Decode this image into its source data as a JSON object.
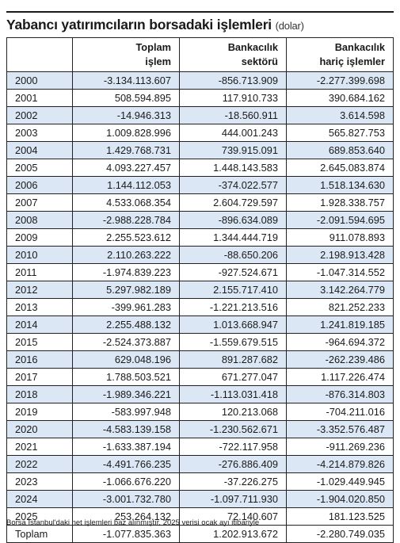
{
  "title": "Yabancı yatırımcıların borsadaki işlemleri",
  "subtitle": "(dolar)",
  "columns": {
    "col1_line1": "Toplam",
    "col1_line2": "işlem",
    "col2_line1": "Bankacılık",
    "col2_line2": "sektörü",
    "col3_line1": "Bankacılık",
    "col3_line2": "hariç işlemler"
  },
  "rows": [
    [
      "2000",
      "-3.134.113.607",
      "-856.713.909",
      "-2.277.399.698"
    ],
    [
      "2001",
      "508.594.895",
      "117.910.733",
      "390.684.162"
    ],
    [
      "2002",
      "-14.946.313",
      "-18.560.911",
      "3.614.598"
    ],
    [
      "2003",
      "1.009.828.996",
      "444.001.243",
      "565.827.753"
    ],
    [
      "2004",
      "1.429.768.731",
      "739.915.091",
      "689.853.640"
    ],
    [
      "2005",
      "4.093.227.457",
      "1.448.143.583",
      "2.645.083.874"
    ],
    [
      "2006",
      "1.144.112.053",
      "-374.022.577",
      "1.518.134.630"
    ],
    [
      "2007",
      "4.533.068.354",
      "2.604.729.597",
      "1.928.338.757"
    ],
    [
      "2008",
      "-2.988.228.784",
      "-896.634.089",
      "-2.091.594.695"
    ],
    [
      "2009",
      "2.255.523.612",
      "1.344.444.719",
      "911.078.893"
    ],
    [
      "2010",
      "2.110.263.222",
      "-88.650.206",
      "2.198.913.428"
    ],
    [
      "2011",
      "-1.974.839.223",
      "-927.524.671",
      "-1.047.314.552"
    ],
    [
      "2012",
      "5.297.982.189",
      "2.155.717.410",
      "3.142.264.779"
    ],
    [
      "2013",
      "-399.961.283",
      "-1.221.213.516",
      "821.252.233"
    ],
    [
      "2014",
      "2.255.488.132",
      "1.013.668.947",
      "1.241.819.185"
    ],
    [
      "2015",
      "-2.524.373.887",
      "-1.559.679.515",
      "-964.694.372"
    ],
    [
      "2016",
      "629.048.196",
      "891.287.682",
      "-262.239.486"
    ],
    [
      "2017",
      "1.788.503.521",
      "671.277.047",
      "1.117.226.474"
    ],
    [
      "2018",
      "-1.989.346.221",
      "-1.113.031.418",
      "-876.314.803"
    ],
    [
      "2019",
      "-583.997.948",
      "120.213.068",
      "-704.211.016"
    ],
    [
      "2020",
      "-4.583.139.158",
      "-1.230.562.671",
      "-3.352.576.487"
    ],
    [
      "2021",
      "-1.633.387.194",
      "-722.117.958",
      "-911.269.236"
    ],
    [
      "2022",
      "-4.491.766.235",
      "-276.886.409",
      "-4.214.879.826"
    ],
    [
      "2023",
      "-1.066.676.220",
      "-37.226.275",
      "-1.029.449.945"
    ],
    [
      "2024",
      "-3.001.732.780",
      "-1.097.711.930",
      "-1.904.020.850"
    ],
    [
      "2025",
      "253.264.132",
      "72.140.607",
      "181.123.525"
    ],
    [
      "Toplam",
      "-1.077.835.363",
      "1.202.913.672",
      "-2.280.749.035"
    ]
  ],
  "footnote": "Borsa İstanbul'daki net işlemleri baz alınmıştır, 2025 verisi ocak ayı itibariyle",
  "colors": {
    "stripe": "#dbe7f5",
    "border": "#222222",
    "text": "#1a1a1a"
  }
}
